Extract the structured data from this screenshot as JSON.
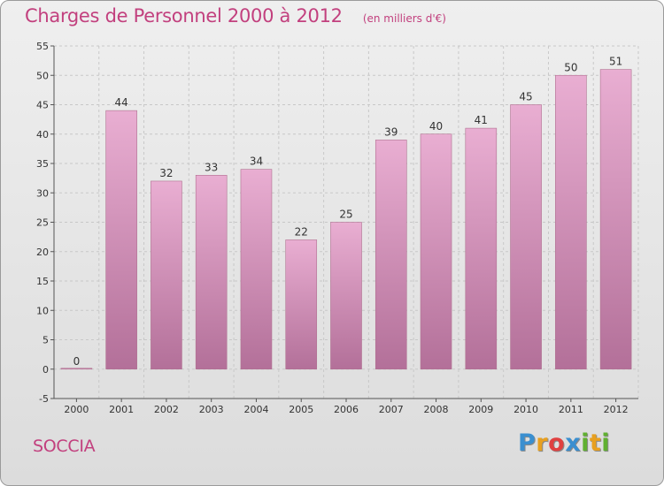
{
  "header": {
    "title": "Charges de Personnel 2000 à 2012",
    "subtitle": "(en milliers d'€)"
  },
  "footer": {
    "commune": "SOCCIA",
    "logo": {
      "letters": [
        "P",
        "r",
        "o",
        "x",
        "i",
        "t",
        "i"
      ],
      "colors": [
        "#3a8fd0",
        "#e8a020",
        "#e04040",
        "#3a8fd0",
        "#60b030",
        "#e8a020",
        "#60b030"
      ]
    }
  },
  "colors": {
    "bar_top": "#e9aed2",
    "bar_bottom": "#b37099",
    "bar_stroke": "#b07090",
    "grid": "#c8c8c8",
    "axis": "#555555"
  },
  "chart_data": {
    "type": "bar",
    "title": "Charges de Personnel 2000 à 2012",
    "subtitle": "(en milliers d'€)",
    "categories": [
      "2000",
      "2001",
      "2002",
      "2003",
      "2004",
      "2005",
      "2006",
      "2007",
      "2008",
      "2009",
      "2010",
      "2011",
      "2012"
    ],
    "values": [
      0,
      44,
      32,
      33,
      34,
      22,
      25,
      39,
      40,
      41,
      45,
      50,
      51
    ],
    "ylim": [
      -5,
      55
    ],
    "yticks": [
      -5,
      0,
      5,
      10,
      15,
      20,
      25,
      30,
      35,
      40,
      45,
      50,
      55
    ],
    "grid": true,
    "legend": "none"
  }
}
